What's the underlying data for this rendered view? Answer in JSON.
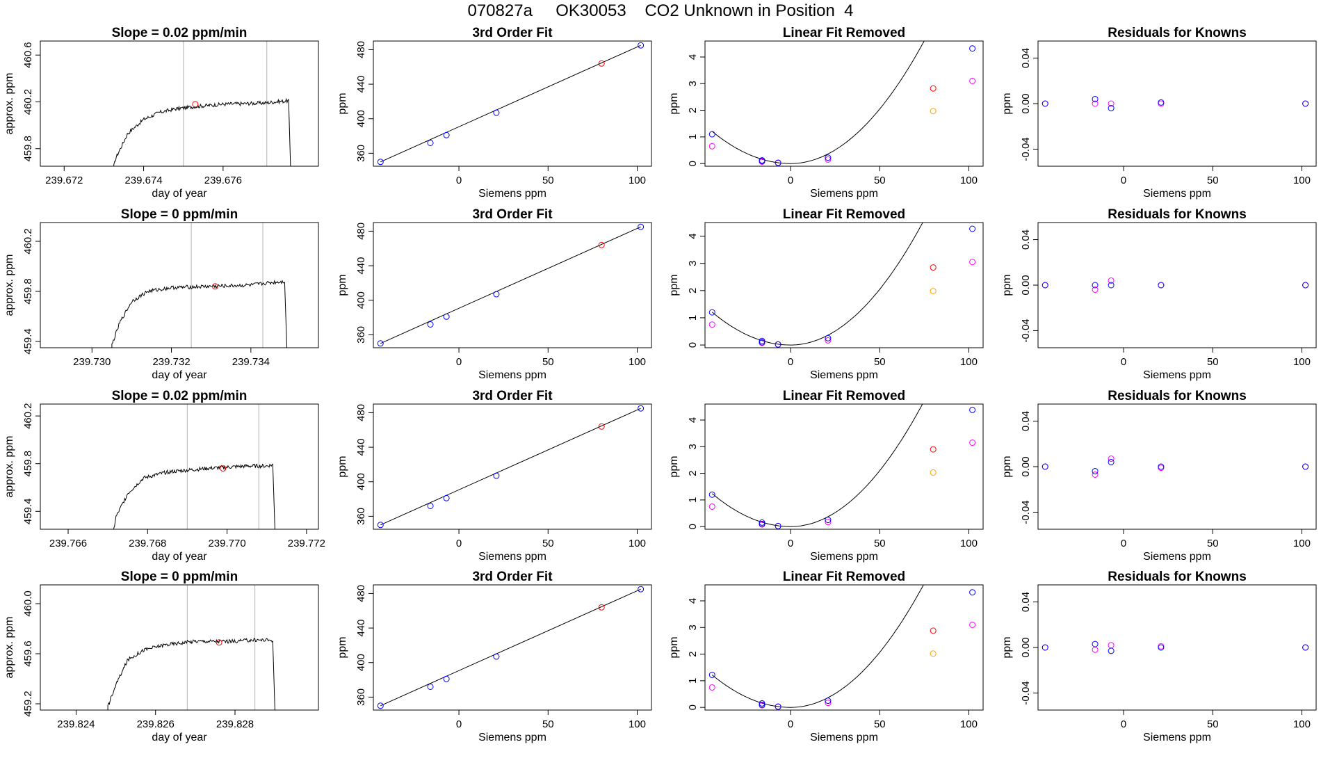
{
  "page_title": "070827a     OK30053    CO2 Unknown in Position  4",
  "colors": {
    "known": "#0000ff",
    "unknown": "#ff0000",
    "target": "#ff00ff",
    "orange": "#ffa500",
    "line": "#000000",
    "vline": "#bebebe"
  },
  "chart_data": [
    {
      "type": "line",
      "title": "Slope =  0.02  ppm/min",
      "xlabel": "day of year",
      "ylabel": "approx. ppm",
      "xticks": [
        "239.672",
        "239.674",
        "239.676"
      ],
      "yticks": [
        "459.8",
        "460.2",
        "460.6"
      ],
      "xlim": [
        239.6714,
        239.6784
      ],
      "ylim": [
        459.65,
        460.72
      ],
      "trace": {
        "start": 239.67325,
        "end": 239.67765,
        "baseline": 459.45,
        "rise": [
          [
            239.67325,
            459.65
          ],
          [
            239.6733,
            459.72
          ],
          [
            239.6736,
            459.93
          ],
          [
            239.674,
            460.05
          ],
          [
            239.6744,
            460.11
          ],
          [
            239.6748,
            460.14
          ],
          [
            239.6753,
            460.16
          ],
          [
            239.676,
            460.18
          ],
          [
            239.677,
            460.19
          ],
          [
            239.67765,
            460.21
          ]
        ],
        "drop": 459.5
      },
      "vlines": [
        239.675,
        239.6771
      ],
      "marker": {
        "x": 239.6753,
        "y": 460.18
      }
    },
    {
      "type": "scatter",
      "title": "3rd Order Fit",
      "xlabel": "Siemens ppm",
      "ylabel": "ppm",
      "xticks": [
        "0",
        "50",
        "100"
      ],
      "yticks": [
        "360",
        "400",
        "440",
        "480"
      ],
      "xlim": [
        -48,
        108
      ],
      "ylim": [
        345,
        490
      ],
      "knowns": [
        [
          -44,
          350
        ],
        [
          -16,
          372
        ],
        [
          -7,
          381
        ],
        [
          21,
          407
        ],
        [
          102,
          485
        ]
      ],
      "unknown": [
        [
          80,
          464
        ]
      ],
      "line": [
        [
          -44,
          350
        ],
        [
          102,
          485
        ]
      ]
    },
    {
      "type": "scatter",
      "title": "Linear Fit Removed",
      "xlabel": "Siemens ppm",
      "ylabel": "ppm",
      "xticks": [
        "0",
        "50",
        "100"
      ],
      "yticks": [
        "0",
        "1",
        "2",
        "3",
        "4"
      ],
      "xlim": [
        -48,
        108
      ],
      "ylim": [
        -0.1,
        4.6
      ],
      "knowns": [
        [
          -44,
          1.1
        ],
        [
          -16,
          0.12
        ],
        [
          -16,
          0.1
        ],
        [
          -7,
          0.03
        ],
        [
          21,
          0.22
        ],
        [
          102,
          4.32
        ]
      ],
      "targets": [
        [
          -44,
          0.65
        ],
        [
          -16,
          0.07
        ],
        [
          -7,
          0.02
        ],
        [
          21,
          0.15
        ],
        [
          102,
          3.1
        ]
      ],
      "unknown": [
        [
          80,
          2.82
        ]
      ],
      "orange": [
        [
          80,
          1.97
        ]
      ],
      "curve": {
        "a": 0.00195,
        "x0": 0,
        "b": 0
      }
    },
    {
      "type": "scatter",
      "title": "Residuals for Knowns",
      "xlabel": "Siemens ppm",
      "ylabel": "ppm",
      "xticks": [
        "0",
        "50",
        "100"
      ],
      "yticks": [
        "-0.04",
        "0.00",
        "0.04"
      ],
      "xlim": [
        -48,
        108
      ],
      "ylim": [
        -0.055,
        0.055
      ],
      "knowns": [
        [
          -44,
          0.0
        ],
        [
          -16,
          0.004
        ],
        [
          -7,
          -0.004
        ],
        [
          21,
          0.001
        ],
        [
          102,
          0.0
        ]
      ],
      "targets": [
        [
          -44,
          0.0
        ],
        [
          -16,
          0.0
        ],
        [
          -7,
          0.0
        ],
        [
          21,
          0.0
        ],
        [
          102,
          0.0
        ]
      ]
    },
    {
      "type": "line",
      "title": "Slope =  0  ppm/min",
      "xlabel": "day of year",
      "ylabel": "approx. ppm",
      "xticks": [
        "239.730",
        "239.732",
        "239.734"
      ],
      "yticks": [
        "459.4",
        "459.8",
        "460.2"
      ],
      "xlim": [
        239.7287,
        239.7357
      ],
      "ylim": [
        459.35,
        460.35
      ],
      "trace": {
        "start": 239.7305,
        "end": 239.73485,
        "baseline": 459.2,
        "rise": [
          [
            239.7305,
            459.37
          ],
          [
            239.7307,
            459.55
          ],
          [
            239.731,
            459.72
          ],
          [
            239.7314,
            459.8
          ],
          [
            239.732,
            459.83
          ],
          [
            239.733,
            459.84
          ],
          [
            239.734,
            459.85
          ],
          [
            239.7345,
            459.87
          ],
          [
            239.73485,
            459.88
          ]
        ],
        "drop": 459.3
      },
      "vlines": [
        239.7325,
        239.7343
      ],
      "marker": {
        "x": 239.7331,
        "y": 459.84
      }
    },
    {
      "type": "scatter",
      "title": "3rd Order Fit",
      "xlabel": "Siemens ppm",
      "ylabel": "ppm",
      "xticks": [
        "0",
        "50",
        "100"
      ],
      "yticks": [
        "360",
        "400",
        "440",
        "480"
      ],
      "xlim": [
        -48,
        108
      ],
      "ylim": [
        345,
        490
      ],
      "knowns": [
        [
          -44,
          350
        ],
        [
          -16,
          372
        ],
        [
          -7,
          381
        ],
        [
          21,
          407
        ],
        [
          102,
          485
        ]
      ],
      "unknown": [
        [
          80,
          464
        ]
      ],
      "line": [
        [
          -44,
          350
        ],
        [
          102,
          485
        ]
      ]
    },
    {
      "type": "scatter",
      "title": "Linear Fit Removed",
      "xlabel": "Siemens ppm",
      "ylabel": "ppm",
      "xticks": [
        "0",
        "50",
        "100"
      ],
      "yticks": [
        "0",
        "1",
        "2",
        "3",
        "4"
      ],
      "xlim": [
        -48,
        108
      ],
      "ylim": [
        -0.1,
        4.5
      ],
      "knowns": [
        [
          -44,
          1.2
        ],
        [
          -16,
          0.15
        ],
        [
          -16,
          0.1
        ],
        [
          -7,
          0.02
        ],
        [
          21,
          0.25
        ],
        [
          102,
          4.27
        ]
      ],
      "targets": [
        [
          -44,
          0.75
        ],
        [
          -16,
          0.08
        ],
        [
          -7,
          0.02
        ],
        [
          21,
          0.17
        ],
        [
          102,
          3.05
        ]
      ],
      "unknown": [
        [
          80,
          2.85
        ]
      ],
      "orange": [
        [
          80,
          1.98
        ]
      ],
      "curve": {
        "a": 0.00195,
        "x0": 0,
        "b": 0
      }
    },
    {
      "type": "scatter",
      "title": "Residuals for Knowns",
      "xlabel": "Siemens ppm",
      "ylabel": "ppm",
      "xticks": [
        "0",
        "50",
        "100"
      ],
      "yticks": [
        "-0.04",
        "0.00",
        "0.04"
      ],
      "xlim": [
        -48,
        108
      ],
      "ylim": [
        -0.055,
        0.055
      ],
      "knowns": [
        [
          -44,
          0.0
        ],
        [
          -16,
          0.0
        ],
        [
          -7,
          0.0
        ],
        [
          21,
          0.0
        ],
        [
          102,
          0.0
        ]
      ],
      "targets": [
        [
          -44,
          0.0
        ],
        [
          -16,
          -0.004
        ],
        [
          -7,
          0.004
        ],
        [
          21,
          0.0
        ],
        [
          102,
          0.0
        ]
      ]
    },
    {
      "type": "line",
      "title": "Slope =  0.02  ppm/min",
      "xlabel": "day of year",
      "ylabel": "approx. ppm",
      "xticks": [
        "239.766",
        "239.768",
        "239.770",
        "239.772"
      ],
      "yticks": [
        "459.4",
        "459.8",
        "460.2"
      ],
      "xlim": [
        239.7653,
        239.7723
      ],
      "ylim": [
        459.25,
        460.3
      ],
      "trace": {
        "start": 239.76715,
        "end": 239.77115,
        "baseline": 459.1,
        "rise": [
          [
            239.76715,
            459.25
          ],
          [
            239.7672,
            459.35
          ],
          [
            239.7675,
            459.55
          ],
          [
            239.7679,
            459.68
          ],
          [
            239.7685,
            459.73
          ],
          [
            239.7695,
            459.76
          ],
          [
            239.7705,
            459.78
          ],
          [
            239.771,
            459.78
          ],
          [
            239.77115,
            459.79
          ]
        ],
        "drop": 459.2
      },
      "vlines": [
        239.769,
        239.7708
      ],
      "marker": {
        "x": 239.7699,
        "y": 459.76
      }
    },
    {
      "type": "scatter",
      "title": "3rd Order Fit",
      "xlabel": "Siemens ppm",
      "ylabel": "ppm",
      "xticks": [
        "0",
        "50",
        "100"
      ],
      "yticks": [
        "360",
        "400",
        "440",
        "480"
      ],
      "xlim": [
        -48,
        108
      ],
      "ylim": [
        345,
        490
      ],
      "knowns": [
        [
          -44,
          350
        ],
        [
          -16,
          372
        ],
        [
          -7,
          381
        ],
        [
          21,
          407
        ],
        [
          102,
          485
        ]
      ],
      "unknown": [
        [
          80,
          464
        ]
      ],
      "line": [
        [
          -44,
          350
        ],
        [
          102,
          485
        ]
      ]
    },
    {
      "type": "scatter",
      "title": "Linear Fit Removed",
      "xlabel": "Siemens ppm",
      "ylabel": "ppm",
      "xticks": [
        "0",
        "50",
        "100"
      ],
      "yticks": [
        "0",
        "1",
        "2",
        "3",
        "4"
      ],
      "xlim": [
        -48,
        108
      ],
      "ylim": [
        -0.1,
        4.6
      ],
      "knowns": [
        [
          -44,
          1.2
        ],
        [
          -16,
          0.15
        ],
        [
          -16,
          0.1
        ],
        [
          -7,
          0.02
        ],
        [
          21,
          0.25
        ],
        [
          102,
          4.38
        ]
      ],
      "targets": [
        [
          -44,
          0.75
        ],
        [
          -16,
          0.08
        ],
        [
          -7,
          0.02
        ],
        [
          21,
          0.17
        ],
        [
          102,
          3.15
        ]
      ],
      "unknown": [
        [
          80,
          2.9
        ]
      ],
      "orange": [
        [
          80,
          2.03
        ]
      ],
      "curve": {
        "a": 0.002,
        "x0": 0,
        "b": 0
      }
    },
    {
      "type": "scatter",
      "title": "Residuals for Knowns",
      "xlabel": "Siemens ppm",
      "ylabel": "ppm",
      "xticks": [
        "0",
        "50",
        "100"
      ],
      "yticks": [
        "-0.04",
        "0.00",
        "0.04"
      ],
      "xlim": [
        -48,
        108
      ],
      "ylim": [
        -0.055,
        0.055
      ],
      "knowns": [
        [
          -44,
          0.0
        ],
        [
          -16,
          -0.004
        ],
        [
          -7,
          0.004
        ],
        [
          21,
          0.0
        ],
        [
          102,
          0.0
        ]
      ],
      "targets": [
        [
          -44,
          0.0
        ],
        [
          -16,
          -0.007
        ],
        [
          -7,
          0.007
        ],
        [
          21,
          -0.001
        ],
        [
          102,
          0.0
        ]
      ]
    },
    {
      "type": "line",
      "title": "Slope =  0  ppm/min",
      "xlabel": "day of year",
      "ylabel": "approx. ppm",
      "xticks": [
        "239.824",
        "239.826",
        "239.828"
      ],
      "yticks": [
        "459.2",
        "459.6",
        "460.0"
      ],
      "xlim": [
        239.8231,
        239.8301
      ],
      "ylim": [
        459.15,
        460.15
      ],
      "trace": {
        "start": 239.8248,
        "end": 239.82895,
        "baseline": 459.0,
        "rise": [
          [
            239.8248,
            459.18
          ],
          [
            239.825,
            459.35
          ],
          [
            239.8253,
            459.55
          ],
          [
            239.8257,
            459.63
          ],
          [
            239.8262,
            459.67
          ],
          [
            239.827,
            459.7
          ],
          [
            239.828,
            459.7
          ],
          [
            239.8285,
            459.71
          ],
          [
            239.82895,
            459.71
          ]
        ],
        "drop": 459.1
      },
      "vlines": [
        239.8268,
        239.8285
      ],
      "marker": {
        "x": 239.8276,
        "y": 459.69
      }
    },
    {
      "type": "scatter",
      "title": "3rd Order Fit",
      "xlabel": "Siemens ppm",
      "ylabel": "ppm",
      "xticks": [
        "0",
        "50",
        "100"
      ],
      "yticks": [
        "360",
        "400",
        "440",
        "480"
      ],
      "xlim": [
        -48,
        108
      ],
      "ylim": [
        345,
        490
      ],
      "knowns": [
        [
          -44,
          350
        ],
        [
          -16,
          372
        ],
        [
          -7,
          381
        ],
        [
          21,
          407
        ],
        [
          102,
          485
        ]
      ],
      "unknown": [
        [
          80,
          464
        ]
      ],
      "line": [
        [
          -44,
          350
        ],
        [
          102,
          485
        ]
      ]
    },
    {
      "type": "scatter",
      "title": "Linear Fit Removed",
      "xlabel": "Siemens ppm",
      "ylabel": "ppm",
      "xticks": [
        "0",
        "50",
        "100"
      ],
      "yticks": [
        "0",
        "1",
        "2",
        "3",
        "4"
      ],
      "xlim": [
        -48,
        108
      ],
      "ylim": [
        -0.1,
        4.6
      ],
      "knowns": [
        [
          -44,
          1.22
        ],
        [
          -16,
          0.15
        ],
        [
          -16,
          0.1
        ],
        [
          -7,
          0.03
        ],
        [
          21,
          0.25
        ],
        [
          102,
          4.32
        ]
      ],
      "targets": [
        [
          -44,
          0.75
        ],
        [
          -16,
          0.08
        ],
        [
          -7,
          0.02
        ],
        [
          21,
          0.17
        ],
        [
          102,
          3.1
        ]
      ],
      "unknown": [
        [
          80,
          2.88
        ]
      ],
      "orange": [
        [
          80,
          2.02
        ]
      ],
      "curve": {
        "a": 0.00197,
        "x0": 0,
        "b": 0
      }
    },
    {
      "type": "scatter",
      "title": "Residuals for Knowns",
      "xlabel": "Siemens ppm",
      "ylabel": "ppm",
      "xticks": [
        "0",
        "50",
        "100"
      ],
      "yticks": [
        "-0.04",
        "0.00",
        "0.04"
      ],
      "xlim": [
        -48,
        108
      ],
      "ylim": [
        -0.055,
        0.055
      ],
      "knowns": [
        [
          -44,
          0.0
        ],
        [
          -16,
          0.003
        ],
        [
          -7,
          -0.003
        ],
        [
          21,
          0.0
        ],
        [
          102,
          0.0
        ]
      ],
      "targets": [
        [
          -44,
          0.0
        ],
        [
          -16,
          -0.002
        ],
        [
          -7,
          0.002
        ],
        [
          21,
          0.001
        ],
        [
          102,
          0.0
        ]
      ]
    }
  ]
}
